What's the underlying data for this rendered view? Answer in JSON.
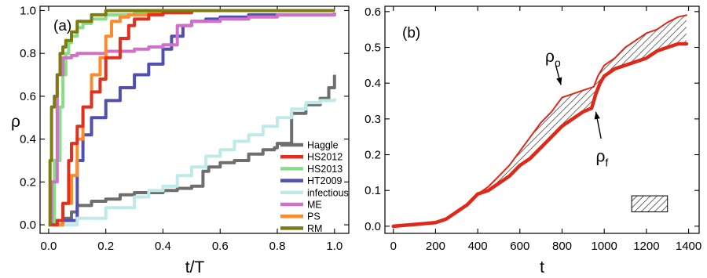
{
  "chart_data": [
    {
      "type": "line",
      "panel_label": "(a)",
      "xlabel": "t/T",
      "ylabel": "ρ",
      "xlim": [
        -0.03,
        1.05
      ],
      "ylim": [
        -0.04,
        1.02
      ],
      "xticks": [
        0.0,
        0.2,
        0.4,
        0.6,
        0.8,
        1.0
      ],
      "xtick_labels": [
        "0.0",
        "0.2",
        "0.4",
        "0.6",
        "0.8",
        "1.0"
      ],
      "yticks": [
        0.0,
        0.2,
        0.4,
        0.6,
        0.8,
        1.0
      ],
      "ytick_labels": [
        "0.0",
        "0.2",
        "0.4",
        "0.6",
        "0.8",
        "1.0"
      ],
      "legend_position": "bottom-right",
      "series": [
        {
          "name": "Haggle",
          "color": "#6e6e6e",
          "width": 4,
          "x": [
            0.0,
            0.05,
            0.08,
            0.1,
            0.15,
            0.2,
            0.25,
            0.3,
            0.35,
            0.4,
            0.45,
            0.5,
            0.53,
            0.54,
            0.56,
            0.6,
            0.65,
            0.7,
            0.75,
            0.79,
            0.8,
            0.85,
            0.9,
            0.95,
            0.98,
            1.0
          ],
          "y": [
            0.02,
            0.03,
            0.06,
            0.09,
            0.11,
            0.12,
            0.14,
            0.15,
            0.15,
            0.16,
            0.17,
            0.18,
            0.18,
            0.25,
            0.27,
            0.29,
            0.3,
            0.33,
            0.35,
            0.36,
            0.38,
            0.52,
            0.56,
            0.59,
            0.64,
            0.7
          ]
        },
        {
          "name": "HS2012",
          "color": "#e03020",
          "width": 4,
          "x": [
            0.0,
            0.03,
            0.05,
            0.07,
            0.08,
            0.1,
            0.12,
            0.15,
            0.18,
            0.2,
            0.25,
            0.28,
            0.3,
            0.35,
            0.4,
            0.45,
            0.5,
            0.6,
            0.8,
            1.0
          ],
          "y": [
            0.0,
            0.02,
            0.1,
            0.3,
            0.38,
            0.46,
            0.55,
            0.62,
            0.68,
            0.78,
            0.87,
            0.93,
            0.96,
            0.98,
            0.99,
            0.99,
            1.0,
            1.0,
            1.0,
            1.0
          ],
          "order": 3
        },
        {
          "name": "HS2013",
          "color": "#88dd88",
          "width": 4,
          "x": [
            0.0,
            0.02,
            0.04,
            0.05,
            0.06,
            0.07,
            0.08,
            0.1,
            0.12,
            0.15,
            0.2,
            0.3,
            0.4,
            0.6,
            1.0
          ],
          "y": [
            0.0,
            0.3,
            0.55,
            0.7,
            0.8,
            0.85,
            0.88,
            0.92,
            0.94,
            0.96,
            0.98,
            0.99,
            1.0,
            1.0,
            1.0
          ]
        },
        {
          "name": "HT2009",
          "color": "#5050b0",
          "width": 4,
          "x": [
            0.0,
            0.05,
            0.1,
            0.12,
            0.15,
            0.2,
            0.25,
            0.3,
            0.35,
            0.4,
            0.43,
            0.47,
            0.5,
            0.55,
            0.6,
            0.65,
            0.7,
            0.8,
            0.9,
            1.0
          ],
          "y": [
            0.0,
            0.02,
            0.3,
            0.42,
            0.5,
            0.58,
            0.64,
            0.7,
            0.75,
            0.82,
            0.88,
            0.93,
            0.95,
            0.96,
            0.97,
            0.97,
            0.98,
            0.98,
            0.98,
            0.99
          ]
        },
        {
          "name": "infectious",
          "color": "#bfeaea",
          "width": 4,
          "x": [
            0.0,
            0.1,
            0.2,
            0.3,
            0.35,
            0.4,
            0.45,
            0.5,
            0.55,
            0.6,
            0.65,
            0.7,
            0.75,
            0.8,
            0.85,
            0.9,
            0.95,
            1.0
          ],
          "y": [
            0.0,
            0.03,
            0.08,
            0.13,
            0.16,
            0.18,
            0.23,
            0.27,
            0.32,
            0.35,
            0.39,
            0.42,
            0.46,
            0.5,
            0.54,
            0.57,
            0.58,
            0.59
          ]
        },
        {
          "name": "ME",
          "color": "#d070c8",
          "width": 4,
          "x": [
            0.0,
            0.01,
            0.03,
            0.05,
            0.08,
            0.1,
            0.2,
            0.3,
            0.35,
            0.4,
            0.45,
            0.5,
            0.6,
            0.7,
            0.8,
            0.9,
            1.0
          ],
          "y": [
            0.0,
            0.2,
            0.7,
            0.78,
            0.79,
            0.8,
            0.81,
            0.82,
            0.83,
            0.84,
            0.93,
            0.95,
            0.96,
            0.97,
            0.98,
            0.98,
            0.99
          ]
        },
        {
          "name": "PS",
          "color": "#ff8a2a",
          "width": 4,
          "x": [
            0.0,
            0.05,
            0.08,
            0.1,
            0.12,
            0.15,
            0.18,
            0.2,
            0.22,
            0.25,
            0.28,
            0.3,
            0.35,
            0.4,
            0.5,
            0.6,
            1.0
          ],
          "y": [
            0.0,
            0.1,
            0.23,
            0.4,
            0.55,
            0.7,
            0.78,
            0.88,
            0.95,
            0.97,
            0.98,
            0.98,
            0.99,
            0.99,
            1.0,
            1.0,
            1.0
          ]
        },
        {
          "name": "RM",
          "color": "#7c7c10",
          "width": 4,
          "x": [
            0.0,
            0.005,
            0.01,
            0.02,
            0.03,
            0.04,
            0.05,
            0.06,
            0.08,
            0.1,
            0.15,
            0.2,
            0.3,
            0.4,
            0.5,
            0.6,
            0.8,
            1.0
          ],
          "y": [
            0.0,
            0.3,
            0.55,
            0.6,
            0.7,
            0.8,
            0.83,
            0.86,
            0.9,
            0.95,
            0.98,
            1.0,
            1.0,
            1.0,
            1.0,
            1.0,
            1.0,
            1.0
          ],
          "order": 8
        }
      ]
    },
    {
      "type": "line",
      "panel_label": "(b)",
      "xlabel": "t",
      "ylabel": "",
      "xlim": [
        -40,
        1450
      ],
      "ylim": [
        -0.02,
        0.615
      ],
      "xticks": [
        0,
        200,
        400,
        600,
        800,
        1000,
        1200,
        1400
      ],
      "xtick_labels": [
        "0",
        "200",
        "400",
        "600",
        "800",
        "1000",
        "1200",
        "1400"
      ],
      "yticks": [
        0.0,
        0.1,
        0.2,
        0.3,
        0.4,
        0.5,
        0.6
      ],
      "ytick_labels": [
        "0.0",
        "0.1",
        "0.2",
        "0.3",
        "0.4",
        "0.5",
        "0.6"
      ],
      "series": [
        {
          "name": "ρo",
          "color": "#e02818",
          "width": 2,
          "x": [
            0,
            100,
            200,
            250,
            300,
            350,
            400,
            450,
            500,
            550,
            600,
            650,
            700,
            750,
            800,
            850,
            900,
            950,
            970,
            1000,
            1050,
            1100,
            1150,
            1200,
            1250,
            1300,
            1350,
            1390
          ],
          "y": [
            0.0,
            0.005,
            0.01,
            0.02,
            0.04,
            0.06,
            0.09,
            0.11,
            0.14,
            0.17,
            0.21,
            0.25,
            0.29,
            0.32,
            0.36,
            0.37,
            0.38,
            0.39,
            0.42,
            0.45,
            0.47,
            0.5,
            0.52,
            0.54,
            0.55,
            0.57,
            0.585,
            0.59
          ]
        },
        {
          "name": "ρf",
          "color": "#e02818",
          "width": 4.5,
          "x": [
            0,
            100,
            200,
            250,
            300,
            350,
            400,
            450,
            500,
            550,
            600,
            650,
            700,
            750,
            800,
            850,
            900,
            940,
            960,
            980,
            1000,
            1050,
            1100,
            1150,
            1200,
            1250,
            1300,
            1350,
            1390
          ],
          "y": [
            0.0,
            0.005,
            0.01,
            0.02,
            0.04,
            0.06,
            0.09,
            0.1,
            0.12,
            0.14,
            0.17,
            0.19,
            0.22,
            0.25,
            0.28,
            0.3,
            0.32,
            0.33,
            0.37,
            0.4,
            0.42,
            0.44,
            0.45,
            0.46,
            0.47,
            0.49,
            0.5,
            0.51,
            0.51
          ]
        }
      ],
      "hatched_region": "between ρo and ρf",
      "annotations": [
        {
          "main": "ρ",
          "sub": "o",
          "x": 720,
          "y": 0.46,
          "arrow_from": [
            770,
            0.45
          ],
          "arrow_to": [
            795,
            0.395
          ]
        },
        {
          "main": "ρ",
          "sub": "f",
          "x": 960,
          "y": 0.18,
          "arrow_from": [
            985,
            0.245
          ],
          "arrow_to": [
            960,
            0.32
          ]
        }
      ],
      "hatched_box": {
        "x": [
          1130,
          1300
        ],
        "y": [
          0.04,
          0.085
        ]
      }
    }
  ]
}
